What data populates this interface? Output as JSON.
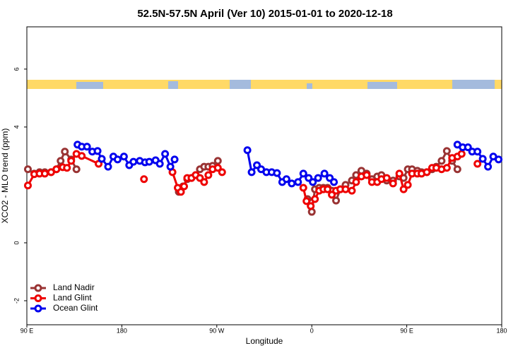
{
  "chart_data": {
    "type": "line",
    "title": "52.5N-57.5N April (Ver 10)   2015-01-01 to 2020-12-18",
    "xlabel": "Longitude",
    "ylabel": "XCO2 - MLO trend (ppm)",
    "xlim": [
      -270,
      180
    ],
    "xticks": [
      {
        "value": -270,
        "label": "90 E"
      },
      {
        "value": -180,
        "label": "180"
      },
      {
        "value": -90,
        "label": "90 W"
      },
      0,
      {
        "value": 90,
        "label": "90 E"
      },
      180
    ],
    "ylim": [
      -2.83,
      7.46
    ],
    "yticks": [
      -2,
      0,
      4,
      6
    ],
    "legend": "bottom-left",
    "series": [
      {
        "name": "Land Nadir",
        "color": "#993333",
        "x": [
          -269,
          -263,
          -258,
          -253,
          -247,
          -242,
          -238,
          -234,
          -228,
          -223,
          -180,
          -126,
          -122,
          -118,
          -114,
          -110,
          -106,
          -102,
          -98,
          -94,
          -89,
          -40,
          -4,
          0,
          3,
          7,
          11,
          15,
          19,
          23,
          27,
          32,
          38,
          42,
          47,
          52,
          57,
          62,
          66,
          71,
          77,
          83,
          87,
          91,
          95,
          100,
          104,
          109,
          114,
          118,
          123,
          128,
          133,
          138
        ],
        "values": [
          2.54,
          2.39,
          2.44,
          2.44,
          2.44,
          2.54,
          2.83,
          3.15,
          2.88,
          2.54,
          null,
          1.76,
          1.95,
          2.2,
          2.24,
          2.34,
          2.54,
          2.63,
          2.63,
          2.66,
          2.83,
          null,
          1.51,
          1.07,
          1.85,
          1.9,
          1.9,
          1.9,
          1.8,
          1.46,
          1.85,
          2.0,
          2.15,
          2.34,
          2.49,
          2.39,
          2.2,
          2.29,
          2.34,
          2.15,
          2.15,
          2.29,
          2.24,
          2.54,
          2.54,
          2.49,
          2.44,
          2.44,
          2.54,
          2.63,
          2.83,
          3.17,
          2.83,
          2.54
        ]
      },
      {
        "name": "Land Glint",
        "color": "#ee0000",
        "x": [
          -269,
          -263,
          -258,
          -253,
          -247,
          -242,
          -236,
          -232,
          -228,
          -223,
          -218,
          -202,
          -190,
          -159,
          -150,
          -132,
          -127,
          -124,
          -121,
          -118,
          -114,
          -110,
          -106,
          -102,
          -98,
          -94,
          -89,
          -85,
          -40,
          -8,
          -5,
          -1,
          3,
          7,
          11,
          15,
          19,
          23,
          27,
          32,
          38,
          42,
          47,
          52,
          57,
          62,
          66,
          71,
          77,
          83,
          87,
          91,
          95,
          100,
          104,
          109,
          114,
          118,
          123,
          128,
          133,
          138,
          142,
          150,
          157
        ],
        "values": [
          1.98,
          2.37,
          2.39,
          2.39,
          2.44,
          2.54,
          2.61,
          2.59,
          2.83,
          3.07,
          3.0,
          2.73,
          null,
          2.2,
          null,
          2.44,
          1.9,
          1.76,
          1.95,
          2.24,
          2.24,
          2.34,
          2.24,
          2.1,
          2.34,
          2.54,
          2.59,
          2.44,
          null,
          1.9,
          1.44,
          1.27,
          1.51,
          1.8,
          1.85,
          1.85,
          1.66,
          1.8,
          1.85,
          1.85,
          1.8,
          2.1,
          2.29,
          2.34,
          2.1,
          2.1,
          2.2,
          2.24,
          2.05,
          2.39,
          1.85,
          2.0,
          2.39,
          2.39,
          2.39,
          2.44,
          2.59,
          2.59,
          2.54,
          2.59,
          2.93,
          2.98,
          3.07,
          null,
          2.73
        ]
      },
      {
        "name": "Ocean Glint",
        "color": "#0000ee",
        "x": [
          -222,
          -218,
          -213,
          -208,
          -203,
          -199,
          -193,
          -188,
          -184,
          -178,
          -173,
          -169,
          -163,
          -158,
          -154,
          -148,
          -144,
          -139,
          -134,
          -130,
          -100,
          -61,
          -57,
          -52,
          -48,
          -43,
          -38,
          -33,
          -28,
          -24,
          -19,
          -13,
          -8,
          -3,
          1,
          6,
          12,
          17,
          21,
          80,
          138,
          143,
          148,
          152,
          157,
          162,
          167,
          172,
          177
        ],
        "values": [
          3.39,
          3.32,
          3.32,
          3.15,
          3.17,
          2.9,
          2.63,
          2.98,
          2.88,
          2.98,
          2.68,
          2.8,
          2.83,
          2.78,
          2.8,
          2.85,
          2.73,
          3.07,
          2.63,
          2.88,
          null,
          3.2,
          2.44,
          2.68,
          2.54,
          2.44,
          2.44,
          2.41,
          2.1,
          2.2,
          2.05,
          2.1,
          2.39,
          2.24,
          2.1,
          2.24,
          2.39,
          2.24,
          2.1,
          null,
          3.39,
          3.3,
          3.3,
          3.15,
          3.15,
          2.9,
          2.63,
          2.98,
          2.88
        ]
      }
    ]
  }
}
